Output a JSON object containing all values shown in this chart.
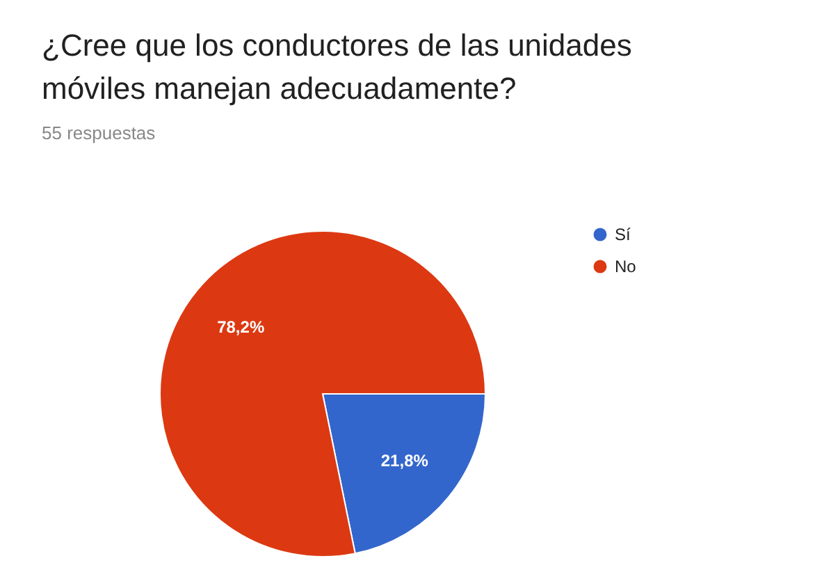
{
  "chart_data": {
    "type": "pie",
    "title": "¿Cree que los conductores de las unidades móviles manejan adecuadamente?",
    "subtitle": "55 respuestas",
    "categories": [
      "Sí",
      "No"
    ],
    "values": [
      21.8,
      78.2
    ],
    "colors": [
      "#3366cc",
      "#dc3912"
    ],
    "value_labels": [
      "21,8%",
      "78,2%"
    ],
    "legend": "top right"
  }
}
